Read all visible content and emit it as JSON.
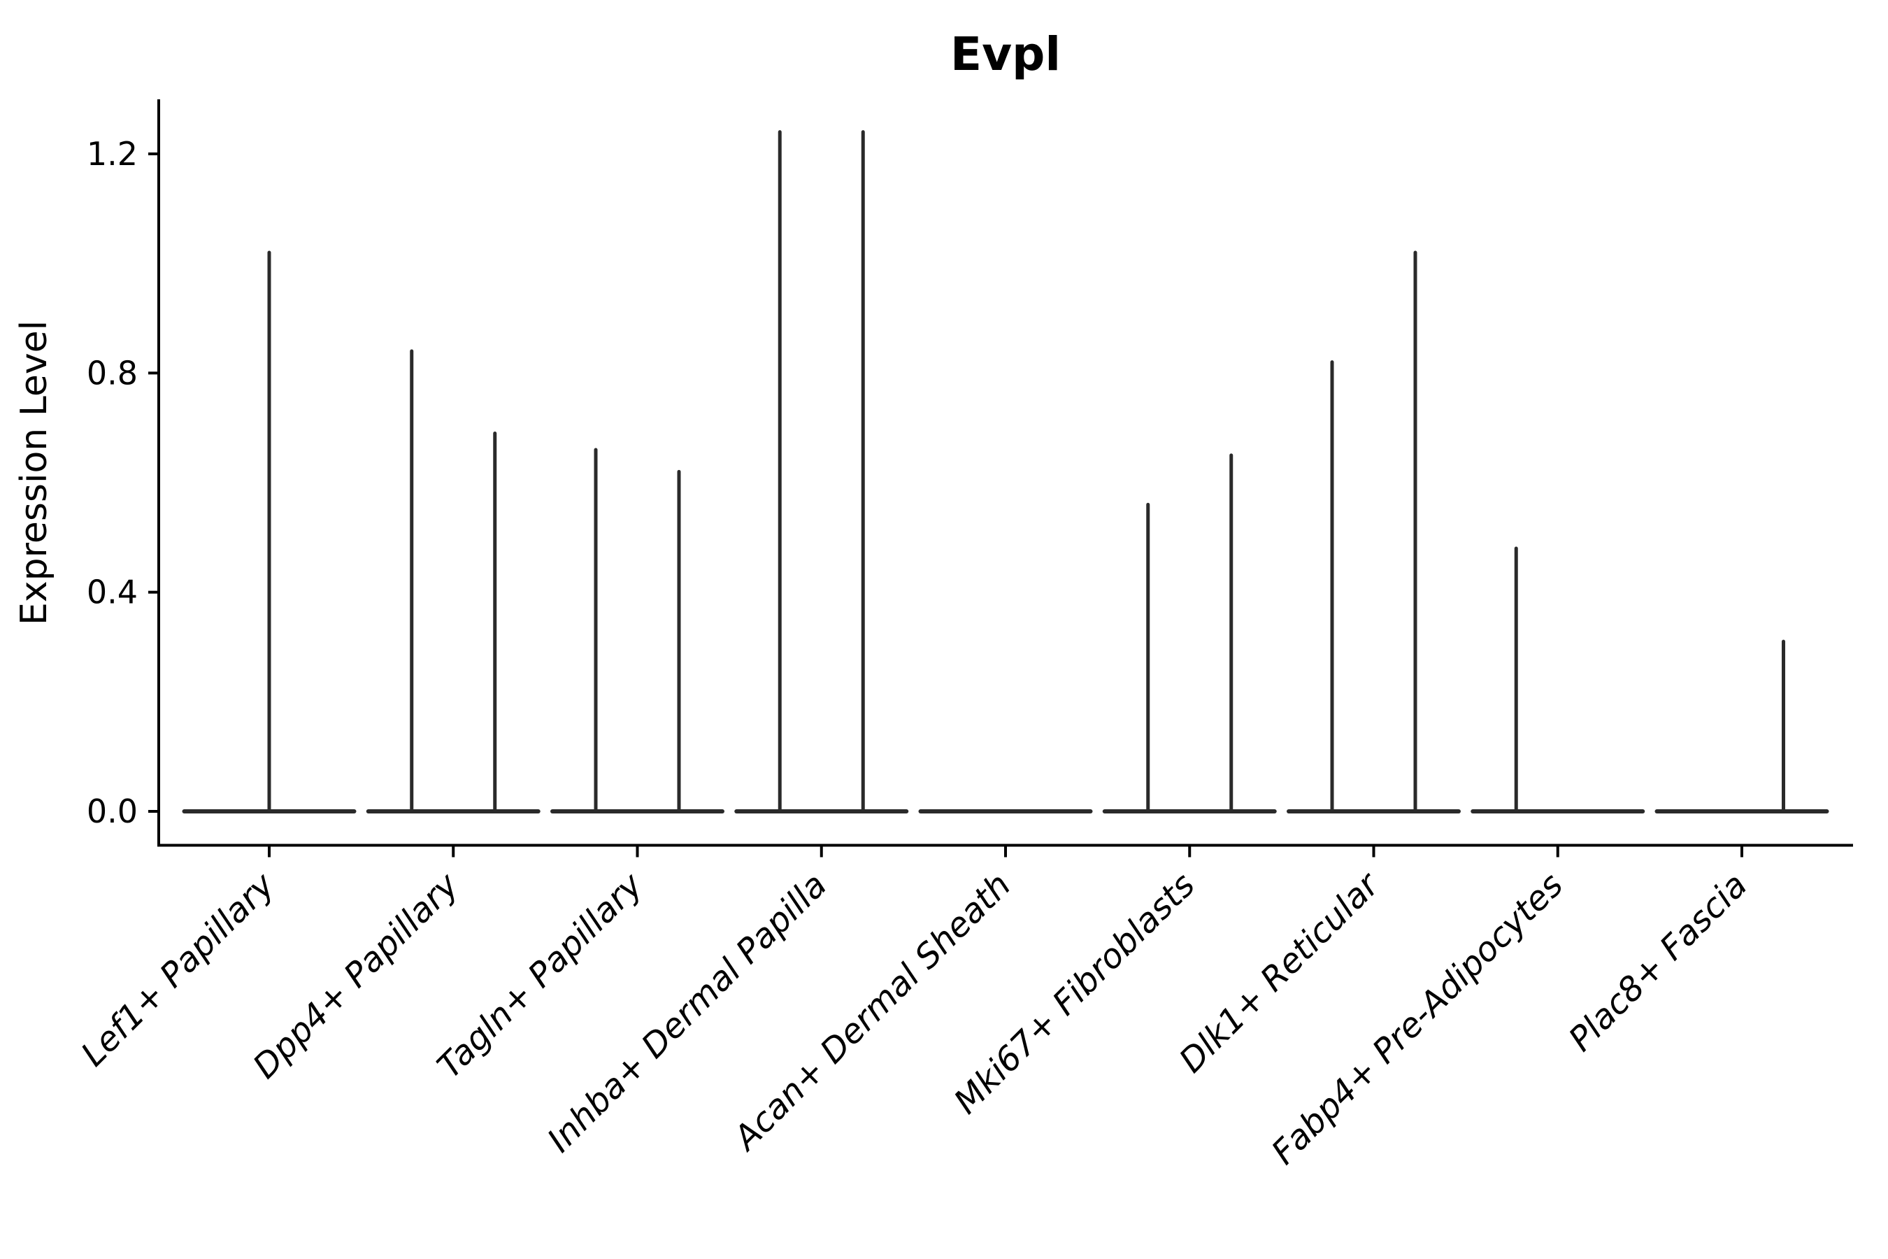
{
  "figure": {
    "background": "#ffffff",
    "axis_color": "#000000",
    "violin_color": "#2a2a2a"
  },
  "chart_data": {
    "type": "violin",
    "title": "Evpl",
    "xlabel": "",
    "ylabel": "Expression Level",
    "yticks": [
      0.0,
      0.4,
      0.8,
      1.2
    ],
    "ytick_labels": [
      "0.0",
      "0.4",
      "0.8",
      "1.2"
    ],
    "ylim": [
      -0.06,
      1.3
    ],
    "grid": false,
    "legend": "none",
    "baseline_expression": 0.0,
    "categories": [
      "Lef1+ Papillary",
      "Dpp4+ Papillary",
      "Tagln+ Papillary",
      "Inhba+ Dermal Papilla",
      "Acan+ Dermal Sheath",
      "Mki67+ Fibroblasts",
      "Dlk1+ Reticular",
      "Fabp4+ Pre-Adipocytes",
      "Plac8+ Fascia"
    ],
    "violins": [
      {
        "category": "Lef1+ Papillary",
        "position": "center",
        "max_expression": 1.02
      },
      {
        "category": "Dpp4+ Papillary",
        "position": "left",
        "max_expression": 0.84
      },
      {
        "category": "Dpp4+ Papillary",
        "position": "right",
        "max_expression": 0.69
      },
      {
        "category": "Tagln+ Papillary",
        "position": "left",
        "max_expression": 0.66
      },
      {
        "category": "Tagln+ Papillary",
        "position": "right",
        "max_expression": 0.62
      },
      {
        "category": "Inhba+ Dermal Papilla",
        "position": "left",
        "max_expression": 1.24
      },
      {
        "category": "Inhba+ Dermal Papilla",
        "position": "right",
        "max_expression": 1.24
      },
      {
        "category": "Acan+ Dermal Sheath",
        "position": "center",
        "max_expression": 0.0
      },
      {
        "category": "Mki67+ Fibroblasts",
        "position": "left",
        "max_expression": 0.56
      },
      {
        "category": "Mki67+ Fibroblasts",
        "position": "right",
        "max_expression": 0.65
      },
      {
        "category": "Dlk1+ Reticular",
        "position": "left",
        "max_expression": 0.82
      },
      {
        "category": "Dlk1+ Reticular",
        "position": "right",
        "max_expression": 1.02
      },
      {
        "category": "Fabp4+ Pre-Adipocytes",
        "position": "left",
        "max_expression": 0.48
      },
      {
        "category": "Plac8+ Fascia",
        "position": "right",
        "max_expression": 0.31
      }
    ]
  }
}
